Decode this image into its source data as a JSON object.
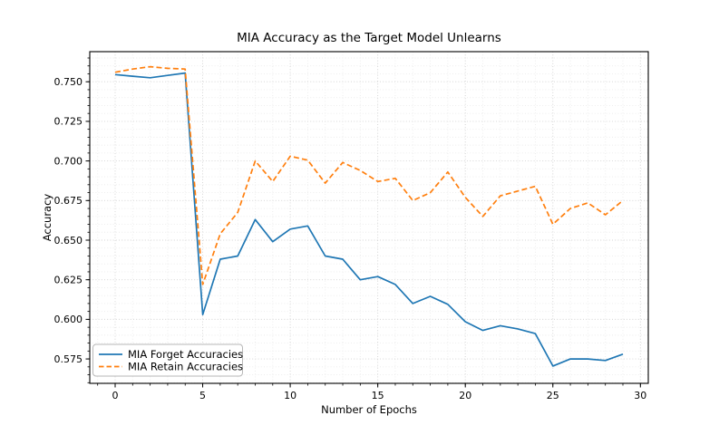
{
  "figure": {
    "title": "MIA Accuracy as the Target Model Unlearns",
    "xlabel": "Number of Epochs",
    "ylabel": "Accuracy"
  },
  "legend": {
    "position": "lower left",
    "entries": [
      {
        "label": "MIA Forget Accuracies",
        "line_style": "solid",
        "color": "#1f77b4"
      },
      {
        "label": "MIA Retain Accuracies",
        "line_style": "dashed",
        "color": "#ff7f0e"
      }
    ]
  },
  "chart_data": {
    "type": "line",
    "title": "MIA Accuracy as the Target Model Unlearns",
    "xlabel": "Number of Epochs",
    "ylabel": "Accuracy",
    "x": [
      0,
      1,
      2,
      3,
      4,
      5,
      6,
      7,
      8,
      9,
      10,
      11,
      12,
      13,
      14,
      15,
      16,
      17,
      18,
      19,
      20,
      21,
      22,
      23,
      24,
      25,
      26,
      27,
      28,
      29
    ],
    "series": [
      {
        "name": "MIA Forget Accuracies",
        "color": "#1f77b4",
        "style": "solid",
        "values": [
          0.7545,
          0.7535,
          0.7525,
          0.754,
          0.7555,
          0.603,
          0.638,
          0.64,
          0.663,
          0.649,
          0.657,
          0.659,
          0.64,
          0.638,
          0.625,
          0.627,
          0.622,
          0.61,
          0.6145,
          0.6095,
          0.5985,
          0.593,
          0.596,
          0.594,
          0.591,
          0.5705,
          0.575,
          0.575,
          0.574,
          0.578
        ]
      },
      {
        "name": "MIA Retain Accuracies",
        "color": "#ff7f0e",
        "style": "dashed",
        "values": [
          0.756,
          0.758,
          0.7595,
          0.7585,
          0.758,
          0.622,
          0.654,
          0.6675,
          0.7,
          0.687,
          0.703,
          0.7005,
          0.686,
          0.699,
          0.694,
          0.687,
          0.689,
          0.675,
          0.68,
          0.693,
          0.677,
          0.665,
          0.678,
          0.681,
          0.684,
          0.66,
          0.67,
          0.6735,
          0.666,
          0.675
        ]
      }
    ],
    "xlim": [
      -1.45,
      30.45
    ],
    "ylim": [
      0.5596,
      0.769
    ],
    "x_ticks": [
      0,
      5,
      10,
      15,
      20,
      25,
      30
    ],
    "y_ticks": [
      0.575,
      0.6,
      0.625,
      0.65,
      0.675,
      0.7,
      0.725,
      0.75
    ],
    "x_minor_step": 1,
    "y_minor_step": 0.005,
    "grid": {
      "which": "both",
      "linestyle": "dotted"
    },
    "legend_position": "lower left",
    "colors": {
      "grid_minor": "#ebebeb",
      "grid_major": "#d6d6d6",
      "spine": "#000000"
    }
  }
}
